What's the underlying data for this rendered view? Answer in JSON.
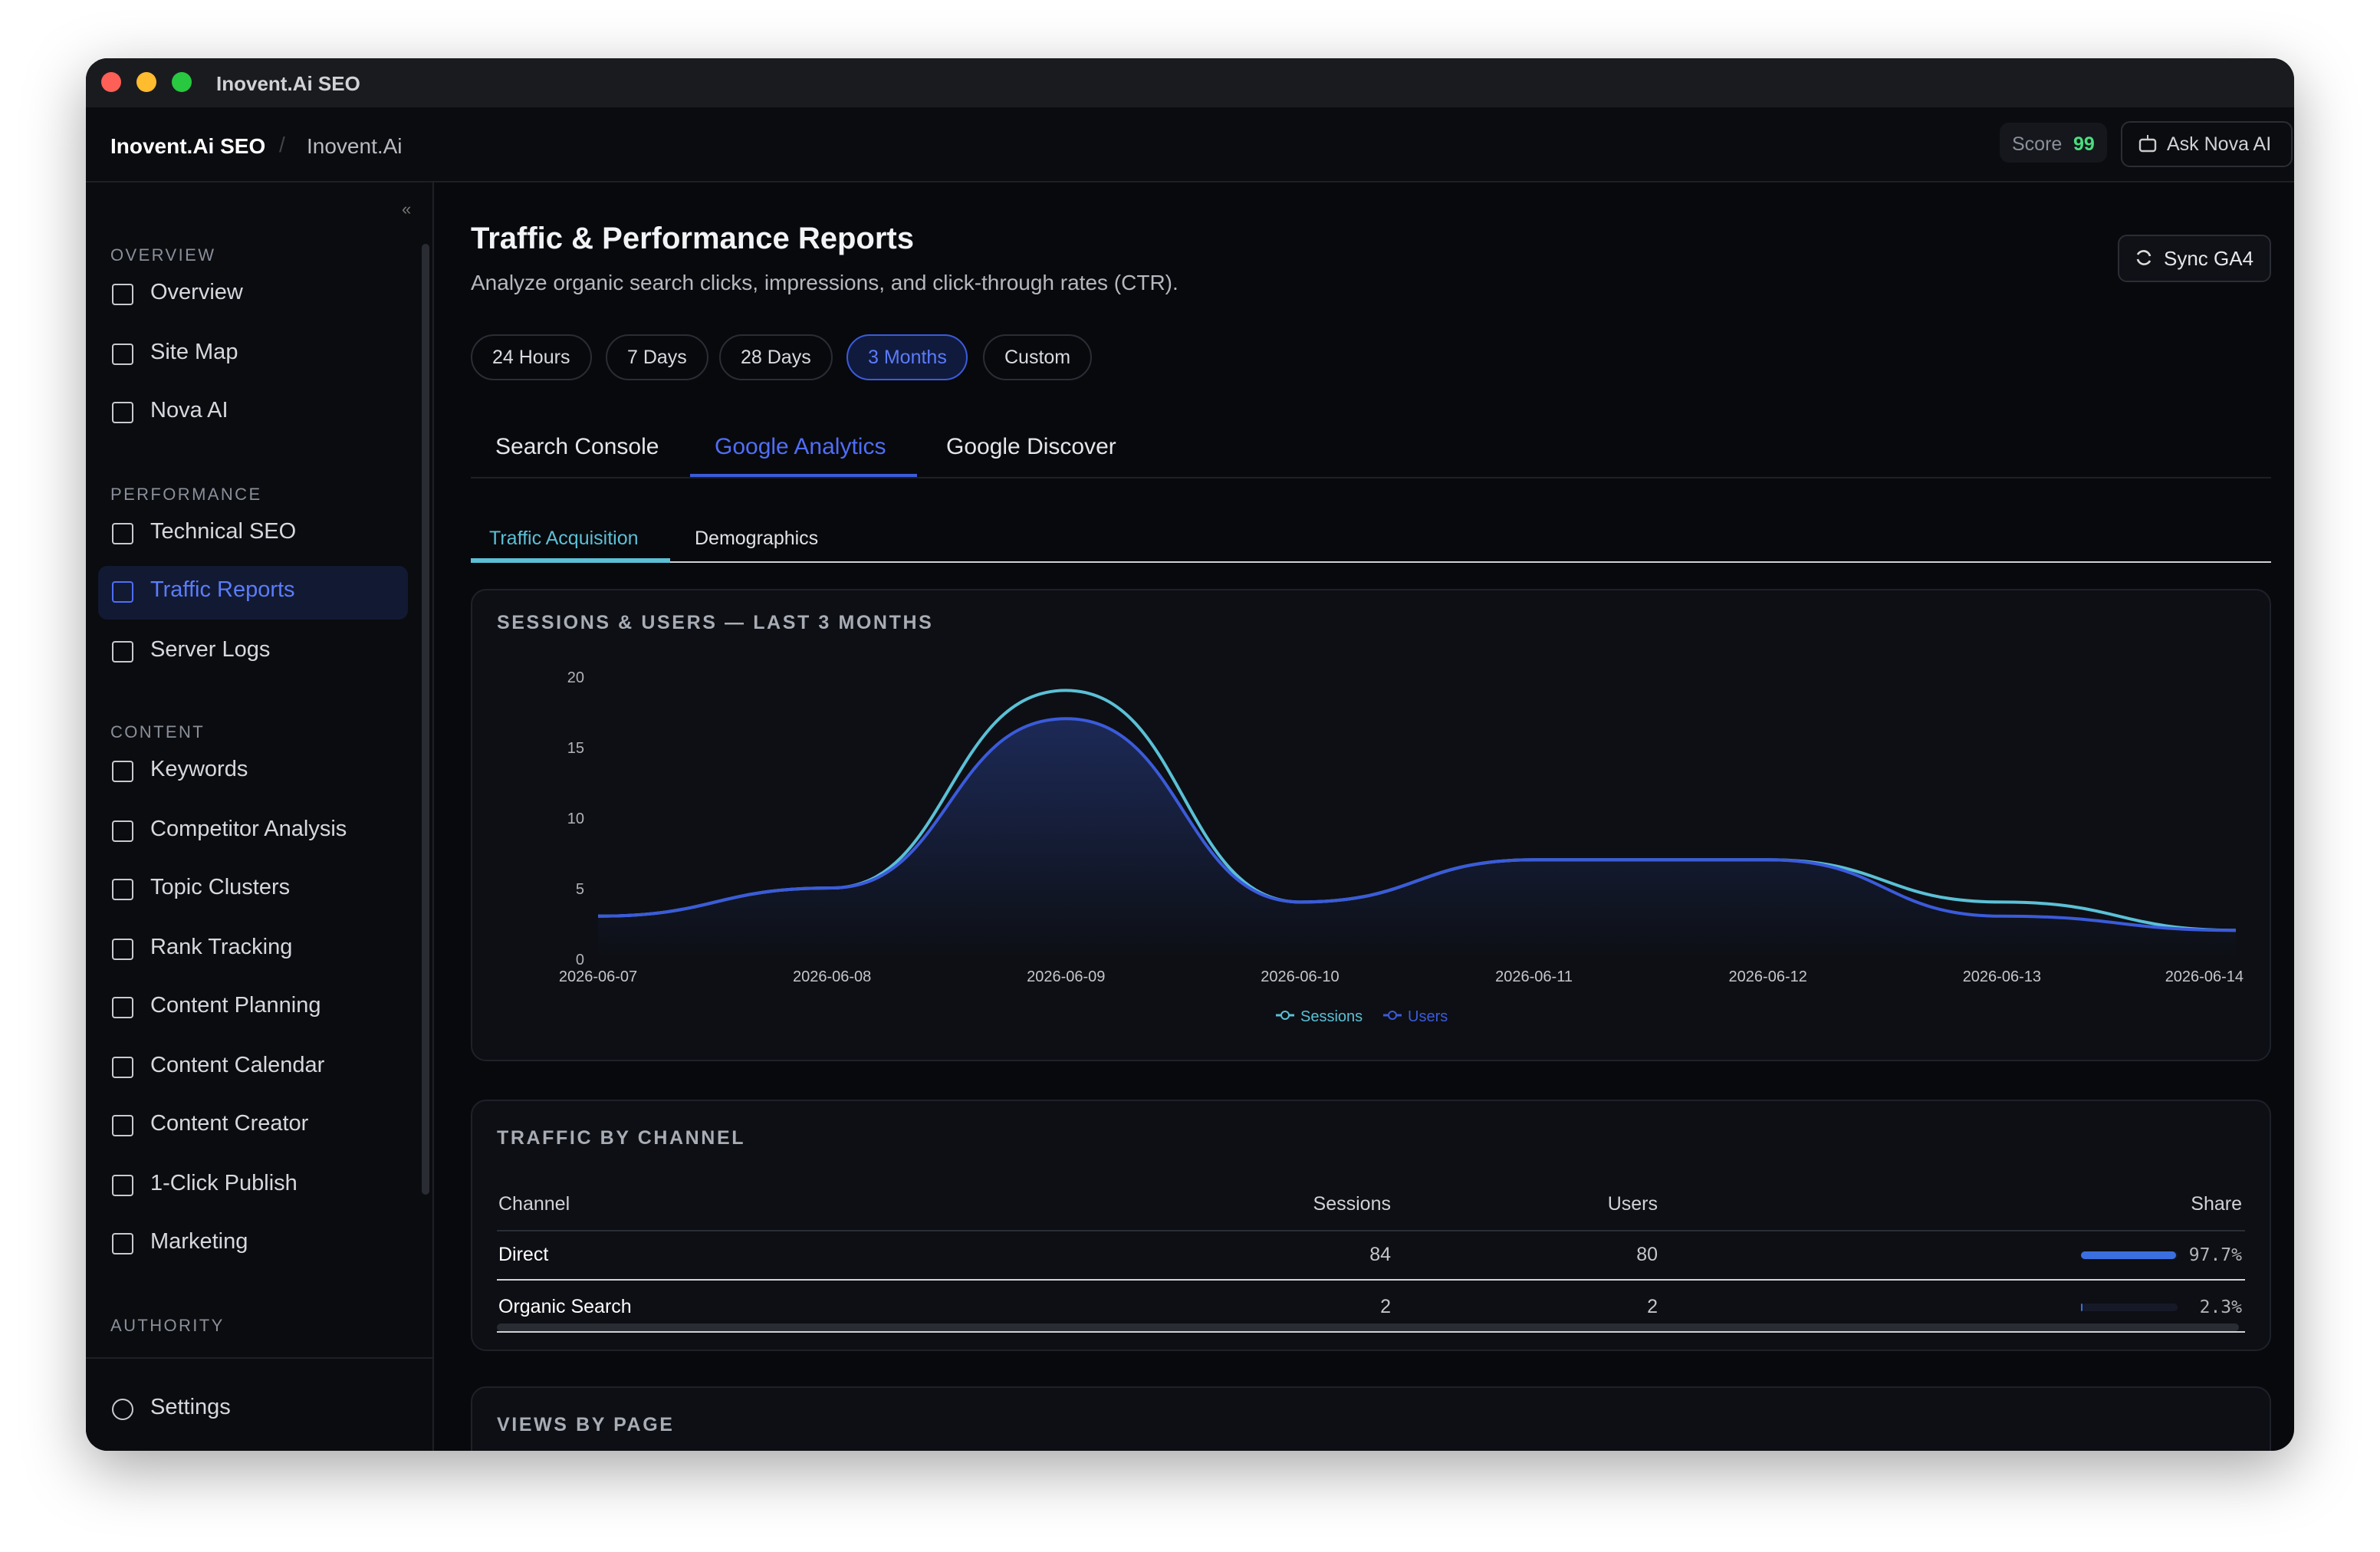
{
  "window_title": "Inovent.Ai SEO",
  "breadcrumb": [
    "Inovent.Ai SEO",
    "Inovent.Ai"
  ],
  "score": {
    "label": "Score",
    "value": 99
  },
  "ask_button": "Ask Nova AI",
  "sidebar": {
    "collapse": "«",
    "sections": [
      {
        "title": "OVERVIEW",
        "items": [
          "Overview",
          "Site Map",
          "Nova AI"
        ]
      },
      {
        "title": "PERFORMANCE",
        "items": [
          "Technical SEO",
          "Traffic Reports",
          "Server Logs"
        ]
      },
      {
        "title": "CONTENT",
        "items": [
          "Keywords",
          "Competitor Analysis",
          "Topic Clusters",
          "Rank Tracking",
          "Content Planning",
          "Content Calendar",
          "Content Creator",
          "1-Click Publish",
          "Marketing"
        ]
      },
      {
        "title": "AUTHORITY"
      }
    ],
    "settings": "Settings"
  },
  "page": {
    "title": "Traffic & Performance Reports",
    "subtitle": "Analyze organic search clicks, impressions, and click-through rates (CTR).",
    "sync_button": "Sync GA4",
    "ranges": [
      "24 Hours",
      "7 Days",
      "28 Days",
      "3 Months",
      "Custom"
    ],
    "tabs": [
      "Search Console",
      "Google Analytics",
      "Google Discover"
    ],
    "subtabs": [
      "Traffic Acquisition",
      "Demographics"
    ]
  },
  "chart_data": {
    "type": "line",
    "title": "SESSIONS & USERS — LAST 3 MONTHS",
    "x": [
      "2026-06-07",
      "2026-06-08",
      "2026-06-09",
      "2026-06-10",
      "2026-06-11",
      "2026-06-12",
      "2026-06-13",
      "2026-06-14"
    ],
    "series": [
      {
        "name": "Sessions",
        "color": "#5bc0d6",
        "values": [
          3,
          5,
          19,
          4,
          7,
          7,
          4,
          2
        ]
      },
      {
        "name": "Users",
        "color": "#3b5bdb",
        "values": [
          3,
          5,
          17,
          4,
          7,
          7,
          3,
          2
        ]
      }
    ],
    "ylim": [
      0,
      20
    ],
    "yticks": [
      0,
      5,
      10,
      15,
      20
    ]
  },
  "channel_table": {
    "title": "TRAFFIC BY CHANNEL",
    "columns": [
      "Channel",
      "Sessions",
      "Users",
      "Share"
    ],
    "rows": [
      {
        "channel": "Direct",
        "sessions": 84,
        "users": 80,
        "share": {
          "value": 97.7,
          "label": "97.7%"
        }
      },
      {
        "channel": "Organic Search",
        "sessions": 2,
        "users": 2,
        "share": {
          "value": 2.3,
          "label": "2.3%"
        }
      }
    ]
  },
  "views_title": "VIEWS BY PAGE"
}
